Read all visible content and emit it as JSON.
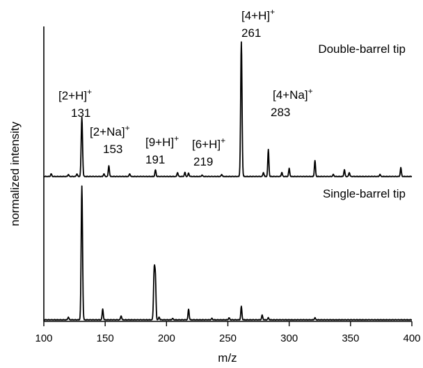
{
  "chart_data": {
    "type": "line",
    "title": "",
    "xlabel": "m/z",
    "ylabel": "normalized intensity",
    "xlim": [
      100,
      400
    ],
    "x_ticks": [
      100,
      150,
      200,
      250,
      300,
      350,
      400
    ],
    "grid": false,
    "legend": "none",
    "series": [
      {
        "name": "Double-barrel tip",
        "peaks": [
          {
            "mz": 106,
            "rel": 0.02
          },
          {
            "mz": 120,
            "rel": 0.015
          },
          {
            "mz": 127,
            "rel": 0.02
          },
          {
            "mz": 131,
            "rel": 0.44
          },
          {
            "mz": 149,
            "rel": 0.02
          },
          {
            "mz": 153,
            "rel": 0.08
          },
          {
            "mz": 170,
            "rel": 0.02
          },
          {
            "mz": 191,
            "rel": 0.05
          },
          {
            "mz": 209,
            "rel": 0.03
          },
          {
            "mz": 215,
            "rel": 0.03
          },
          {
            "mz": 218,
            "rel": 0.025
          },
          {
            "mz": 229,
            "rel": 0.01
          },
          {
            "mz": 245,
            "rel": 0.015
          },
          {
            "mz": 261,
            "rel": 1.0
          },
          {
            "mz": 279,
            "rel": 0.03
          },
          {
            "mz": 283,
            "rel": 0.2
          },
          {
            "mz": 294,
            "rel": 0.03
          },
          {
            "mz": 300,
            "rel": 0.06
          },
          {
            "mz": 321,
            "rel": 0.12
          },
          {
            "mz": 336,
            "rel": 0.015
          },
          {
            "mz": 345,
            "rel": 0.05
          },
          {
            "mz": 349,
            "rel": 0.03
          },
          {
            "mz": 374,
            "rel": 0.015
          },
          {
            "mz": 391,
            "rel": 0.065
          }
        ]
      },
      {
        "name": "Single-barrel tip",
        "peaks": [
          {
            "mz": 120,
            "rel": 0.02
          },
          {
            "mz": 131,
            "rel": 1.0
          },
          {
            "mz": 148,
            "rel": 0.08
          },
          {
            "mz": 163,
            "rel": 0.03
          },
          {
            "mz": 190,
            "rel": 0.38
          },
          {
            "mz": 191,
            "rel": 0.27
          },
          {
            "mz": 194,
            "rel": 0.02
          },
          {
            "mz": 205,
            "rel": 0.01
          },
          {
            "mz": 218,
            "rel": 0.08
          },
          {
            "mz": 237,
            "rel": 0.01
          },
          {
            "mz": 251,
            "rel": 0.015
          },
          {
            "mz": 261,
            "rel": 0.1
          },
          {
            "mz": 278,
            "rel": 0.035
          },
          {
            "mz": 283,
            "rel": 0.015
          },
          {
            "mz": 321,
            "rel": 0.015
          }
        ]
      }
    ],
    "annotations": [
      {
        "ion": "[2+H]",
        "charge": "+",
        "mz_label": "131",
        "mz": 131
      },
      {
        "ion": "[2+Na]",
        "charge": "+",
        "mz_label": "153",
        "mz": 153
      },
      {
        "ion": "[9+H]",
        "charge": "+",
        "mz_label": "191",
        "mz": 191
      },
      {
        "ion": "[6+H]",
        "charge": "+",
        "mz_label": "219",
        "mz": 219
      },
      {
        "ion": "[4+H]",
        "charge": "+",
        "mz_label": "261",
        "mz": 261
      },
      {
        "ion": "[4+Na]",
        "charge": "+",
        "mz_label": "283",
        "mz": 283
      }
    ]
  }
}
